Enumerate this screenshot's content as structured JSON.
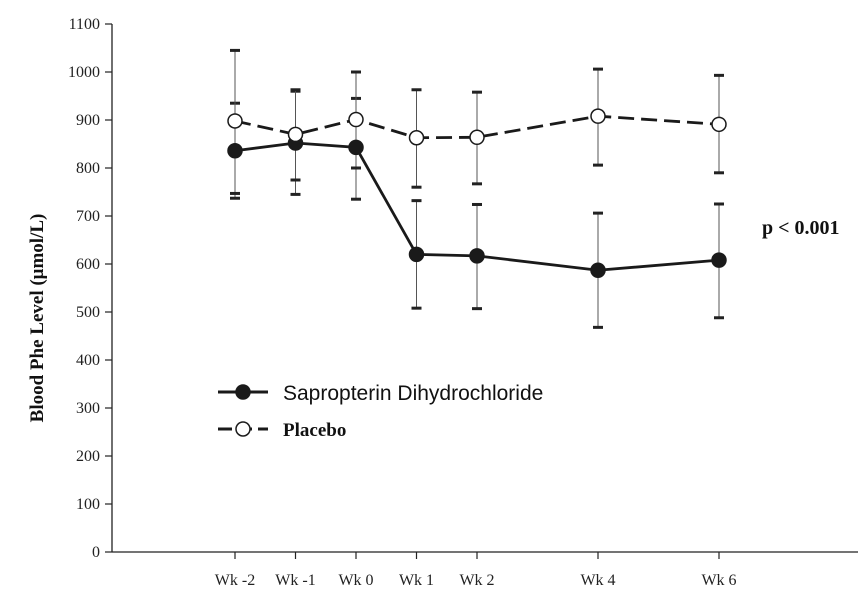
{
  "chart_data": {
    "type": "line",
    "title": "",
    "xlabel": "",
    "ylabel": "Blood Phe Level (μmol/L)",
    "ylim": [
      0,
      1100
    ],
    "yticks": [
      0,
      100,
      200,
      300,
      400,
      500,
      600,
      700,
      800,
      900,
      1000,
      1100
    ],
    "categories": [
      "Wk -2",
      "Wk -1",
      "Wk 0",
      "Wk 1",
      "Wk 2",
      "Wk 4",
      "Wk 6"
    ],
    "week": [
      -2,
      -1,
      0,
      1,
      2,
      4,
      6
    ],
    "grid": false,
    "legend_position": "lower-left",
    "series": [
      {
        "name": "Sapropterin Dihydrochloride",
        "style": "solid",
        "marker": "filled-circle",
        "color": "#1a1a1a",
        "values": [
          836,
          852,
          843,
          620,
          617,
          587,
          608
        ],
        "error_low": [
          737,
          745,
          735,
          508,
          507,
          468,
          488
        ],
        "error_high": [
          935,
          960,
          945,
          732,
          724,
          706,
          725
        ]
      },
      {
        "name": "Placebo",
        "style": "dashed",
        "marker": "open-circle",
        "color": "#1a1a1a",
        "values": [
          898,
          870,
          901,
          863,
          864,
          908,
          891
        ],
        "error_low": [
          747,
          775,
          800,
          760,
          767,
          806,
          790
        ],
        "error_high": [
          1045,
          963,
          1000,
          963,
          958,
          1006,
          993
        ]
      }
    ],
    "annotations": [
      {
        "text": "p < 0.001"
      }
    ]
  }
}
